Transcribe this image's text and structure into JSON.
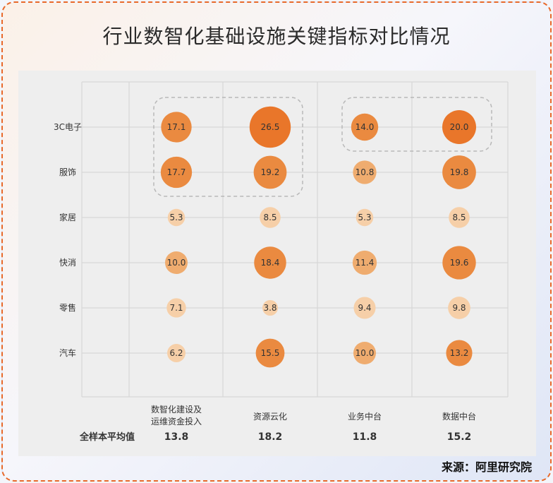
{
  "title": "行业数智化基础设施关键指标对比情况",
  "source": "来源：阿里研究院",
  "chart_data": {
    "type": "scatter",
    "subtype": "bubble-matrix",
    "rows": [
      "3C电子",
      "服饰",
      "家居",
      "快消",
      "零售",
      "汽车"
    ],
    "columns": [
      "数智化建设及运维资金投入",
      "资源云化",
      "业务中台",
      "数据中台"
    ],
    "column_labels": [
      [
        "数智化建设及",
        "运维资金投入"
      ],
      [
        "资源云化"
      ],
      [
        "业务中台"
      ],
      [
        "数据中台"
      ]
    ],
    "values": [
      [
        17.1,
        26.5,
        14.0,
        20.0
      ],
      [
        17.7,
        19.2,
        10.8,
        19.8
      ],
      [
        5.3,
        8.5,
        5.3,
        8.5
      ],
      [
        10.0,
        18.4,
        11.4,
        19.6
      ],
      [
        7.1,
        3.8,
        9.4,
        9.8
      ],
      [
        6.2,
        15.5,
        10.0,
        13.2
      ]
    ],
    "average_label": "全样本平均值",
    "averages": [
      13.8,
      18.2,
      11.8,
      15.2
    ],
    "grid": true,
    "highlight_groups": [
      {
        "rows": [
          "3C电子",
          "服饰"
        ],
        "columns": [
          "数智化建设及运维资金投入",
          "资源云化"
        ]
      },
      {
        "rows": [
          "3C电子"
        ],
        "columns": [
          "业务中台",
          "数据中台"
        ]
      }
    ],
    "colors": {
      "low": "#f6cfa8",
      "mid": "#efac6f",
      "high": "#e9762a"
    }
  }
}
